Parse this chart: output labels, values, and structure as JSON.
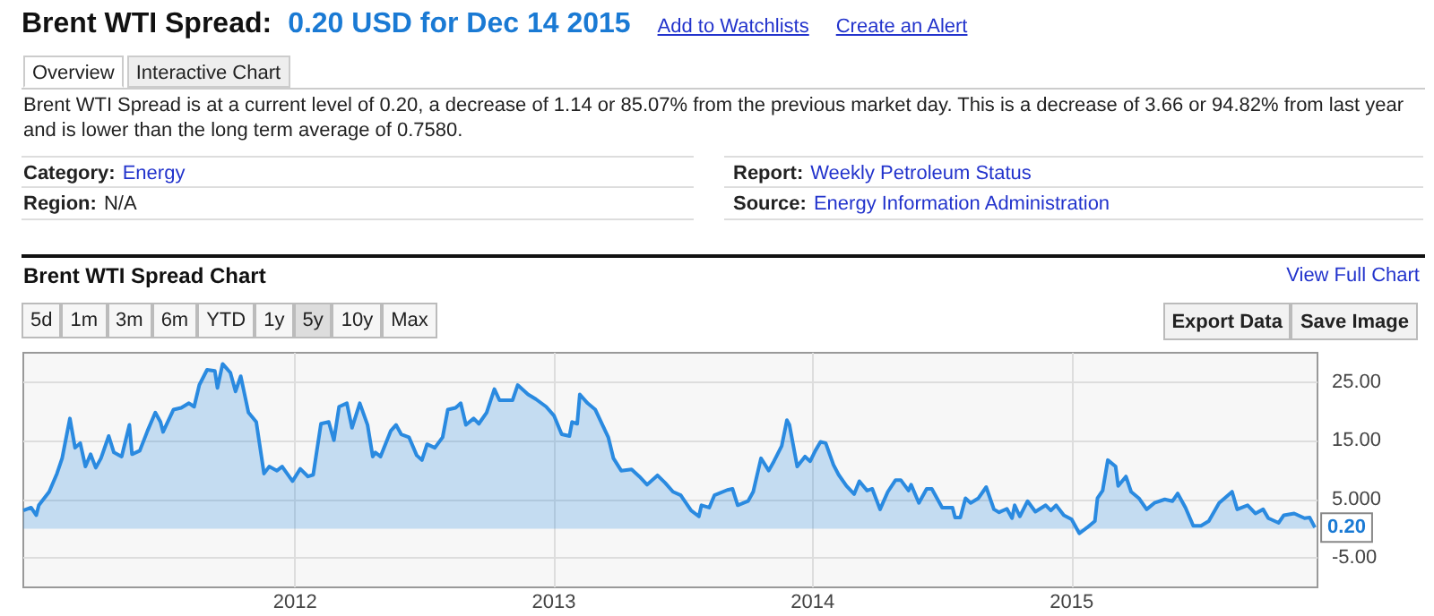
{
  "chart_data": {
    "type": "area",
    "title": "Brent WTI Spread Chart",
    "x": [
      2010.95,
      2010.98,
      2011.0,
      2011.01,
      2011.05,
      2011.08,
      2011.1,
      2011.13,
      2011.15,
      2011.17,
      2011.19,
      2011.21,
      2011.23,
      2011.25,
      2011.28,
      2011.3,
      2011.33,
      2011.36,
      2011.37,
      2011.4,
      2011.43,
      2011.46,
      2011.48,
      2011.49,
      2011.53,
      2011.56,
      2011.59,
      2011.61,
      2011.63,
      2011.66,
      2011.69,
      2011.7,
      2011.72,
      2011.75,
      2011.77,
      2011.79,
      2011.82,
      2011.85,
      2011.88,
      2011.9,
      2011.93,
      2011.95,
      2011.99,
      2012.02,
      2012.05,
      2012.07,
      2012.1,
      2012.13,
      2012.15,
      2012.17,
      2012.2,
      2012.22,
      2012.25,
      2012.28,
      2012.3,
      2012.31,
      2012.33,
      2012.37,
      2012.39,
      2012.41,
      2012.44,
      2012.47,
      2012.49,
      2012.51,
      2012.54,
      2012.57,
      2012.59,
      2012.62,
      2012.64,
      2012.66,
      2012.69,
      2012.71,
      2012.74,
      2012.77,
      2012.79,
      2012.84,
      2012.86,
      2012.9,
      2012.93,
      2012.97,
      2013.0,
      2013.03,
      2013.06,
      2013.07,
      2013.09,
      2013.1,
      2013.13,
      2013.16,
      2013.21,
      2013.23,
      2013.26,
      2013.3,
      2013.33,
      2013.36,
      2013.4,
      2013.43,
      2013.46,
      2013.49,
      2013.53,
      2013.56,
      2013.57,
      2013.6,
      2013.62,
      2013.67,
      2013.69,
      2013.71,
      2013.75,
      2013.77,
      2013.8,
      2013.83,
      2013.85,
      2013.88,
      2013.9,
      2013.91,
      2013.94,
      2013.97,
      2013.99,
      2014.01,
      2014.03,
      2014.05,
      2014.08,
      2014.1,
      2014.13,
      2014.16,
      2014.18,
      2014.21,
      2014.23,
      2014.26,
      2014.29,
      2014.32,
      2014.34,
      2014.37,
      2014.38,
      2014.41,
      2014.44,
      2014.46,
      2014.5,
      2014.54,
      2014.55,
      2014.57,
      2014.59,
      2014.61,
      2014.64,
      2014.67,
      2014.7,
      2014.72,
      2014.75,
      2014.77,
      2014.78,
      2014.8,
      2014.83,
      2014.86,
      2014.9,
      2014.92,
      2014.94,
      2014.97,
      2015.0,
      2015.03,
      2015.06,
      2015.09,
      2015.1,
      2015.12,
      2015.14,
      2015.17,
      2015.18,
      2015.21,
      2015.23,
      2015.26,
      2015.29,
      2015.32,
      2015.36,
      2015.39,
      2015.41,
      2015.44,
      2015.47,
      2015.5,
      2015.53,
      2015.57,
      2015.62,
      2015.64,
      2015.68,
      2015.71,
      2015.74,
      2015.76,
      2015.8,
      2015.82,
      2015.86,
      2015.9,
      2015.92,
      2015.94
    ],
    "series": [
      {
        "color": "#2a8ae0",
        "values": [
          3.1,
          3.6,
          2.3,
          4.0,
          6.3,
          9.4,
          12.0,
          18.8,
          13.8,
          14.6,
          10.6,
          12.7,
          10.4,
          12.0,
          15.8,
          13.0,
          12.3,
          17.7,
          12.7,
          13.3,
          16.7,
          19.8,
          18.2,
          16.5,
          20.3,
          20.6,
          21.4,
          20.8,
          24.5,
          27.1,
          26.9,
          24.0,
          28.1,
          26.6,
          23.4,
          26.0,
          19.8,
          18.2,
          9.4,
          10.6,
          9.9,
          10.6,
          8.1,
          10.2,
          8.9,
          9.2,
          17.9,
          18.2,
          15.1,
          20.8,
          21.4,
          17.2,
          21.4,
          17.7,
          12.3,
          13.0,
          12.3,
          16.7,
          17.7,
          16.1,
          15.6,
          12.5,
          11.7,
          14.4,
          13.8,
          15.6,
          20.3,
          20.6,
          21.4,
          17.7,
          18.8,
          17.9,
          19.8,
          23.8,
          21.9,
          21.9,
          24.5,
          22.9,
          22.1,
          20.8,
          19.3,
          16.1,
          15.8,
          18.2,
          17.9,
          22.9,
          21.4,
          20.3,
          15.6,
          12.0,
          9.9,
          10.1,
          8.9,
          7.5,
          9.1,
          7.8,
          6.3,
          5.7,
          3.1,
          2.1,
          4.0,
          3.6,
          5.7,
          6.6,
          6.8,
          4.0,
          4.7,
          6.3,
          12.0,
          9.9,
          11.5,
          14.1,
          18.5,
          17.7,
          10.6,
          12.3,
          11.5,
          13.3,
          14.8,
          14.6,
          10.9,
          9.2,
          7.3,
          5.9,
          8.1,
          6.5,
          6.8,
          3.3,
          6.3,
          8.3,
          8.3,
          6.5,
          7.5,
          4.4,
          6.8,
          6.8,
          3.6,
          3.6,
          1.9,
          1.9,
          5.2,
          4.4,
          5.2,
          7.1,
          3.3,
          2.8,
          3.4,
          1.8,
          4.0,
          2.1,
          4.7,
          2.9,
          4.0,
          3.1,
          4.0,
          2.3,
          1.6,
          -0.8,
          0.2,
          1.3,
          5.2,
          6.5,
          11.7,
          10.6,
          7.3,
          8.9,
          6.3,
          5.2,
          3.3,
          4.4,
          5.0,
          4.7,
          6.0,
          3.6,
          0.5,
          0.5,
          1.3,
          4.4,
          6.3,
          3.3,
          4.0,
          2.6,
          3.3,
          1.8,
          1.0,
          2.3,
          2.6,
          1.8,
          1.9,
          0.2
        ]
      }
    ],
    "xlim": [
      2010.95,
      2015.95
    ],
    "xticks": [
      2012,
      2013,
      2014,
      2015
    ],
    "ylim": [
      -10,
      30
    ],
    "yticks": [
      {
        "value": 25,
        "label": "25.00"
      },
      {
        "value": 15,
        "label": "15.00"
      },
      {
        "value": 5,
        "label": "5.000"
      },
      {
        "value": -5,
        "label": "-5.00"
      }
    ],
    "grid": true,
    "marker": "none",
    "annotations": [
      "Brent WTI Spread:",
      "0.20 USD for Dec 14 2015",
      "Add to Watchlists",
      "Create an Alert",
      "Overview",
      "Interactive Chart",
      "Brent WTI Spread is at a current level of 0.20, a decrease of 1.14 or 85.07% from the previous market day. This is a decrease of 3.66 or 94.82% from last year and is lower than the long term average of 0.7580.",
      "Category:",
      "Energy",
      "Region:",
      "N/A",
      "Report:",
      "Weekly Petroleum Status",
      "Source:",
      "Energy Information Administration",
      "View Full Chart",
      "5d",
      "1m",
      "3m",
      "6m",
      "YTD",
      "1y",
      "5y",
      "10y",
      "Max",
      "Export Data",
      "Save Image",
      {
        "text": "0.20",
        "x": 2015.94,
        "y": 0.2
      }
    ]
  }
}
